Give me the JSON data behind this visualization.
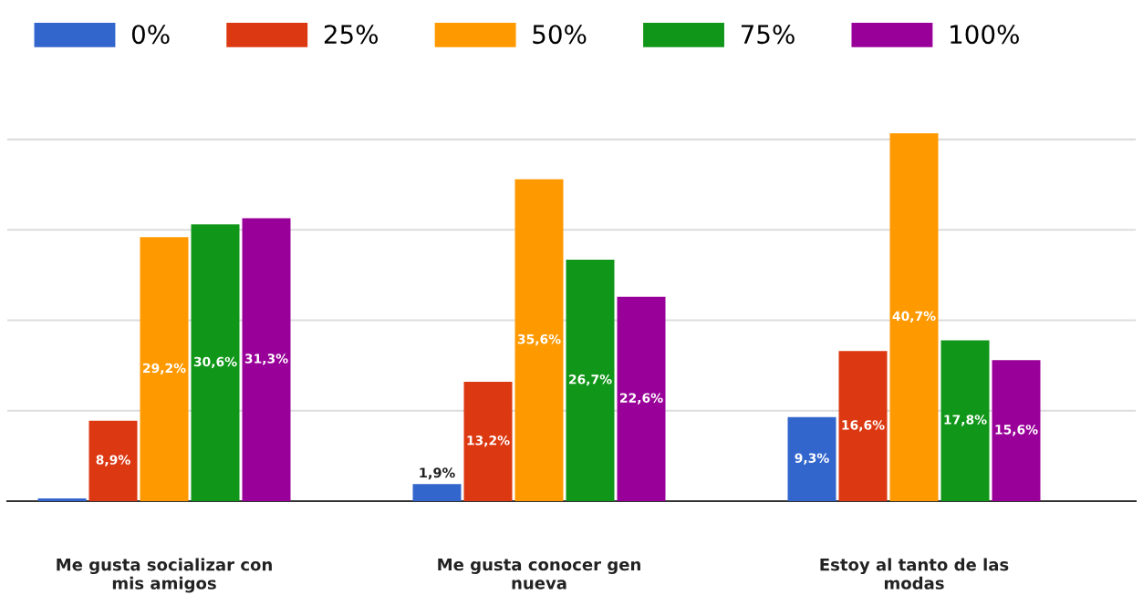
{
  "chart_data": {
    "type": "bar",
    "categories": [
      "Me gusta socializar con\nmis amigos",
      "Me gusta conocer gen\nnueva",
      "Estoy al tanto de las\nmodas"
    ],
    "yticks": [
      {
        "value": 10,
        "label": null
      },
      {
        "value": 20,
        "label": null
      },
      {
        "value": 30,
        "label": null
      },
      {
        "value": 40,
        "label": null
      }
    ],
    "grid": "y",
    "tick_labels": "x",
    "legend": "top",
    "series": [
      {
        "name": "0%",
        "color": "#3366cc",
        "values": [
          0.3,
          1.9,
          9.3
        ],
        "value_labels": [
          null,
          "1,9%",
          "9,3%"
        ]
      },
      {
        "name": "25%",
        "color": "#dc3912",
        "values": [
          8.9,
          13.2,
          16.6
        ],
        "value_labels": [
          "8,9%",
          "13,2%",
          "16,6%"
        ]
      },
      {
        "name": "50%",
        "color": "#ff9900",
        "values": [
          29.2,
          35.6,
          40.7
        ],
        "value_labels": [
          "29,2%",
          "35,6%",
          "40,7%"
        ]
      },
      {
        "name": "75%",
        "color": "#109618",
        "values": [
          30.6,
          26.7,
          17.8
        ],
        "value_labels": [
          "30,6%",
          "26,7%",
          "17,8%"
        ]
      },
      {
        "name": "100%",
        "color": "#990099",
        "values": [
          31.3,
          22.6,
          15.6
        ],
        "value_labels": [
          "31,3%",
          "22,6%",
          "15,6%"
        ]
      }
    ]
  }
}
